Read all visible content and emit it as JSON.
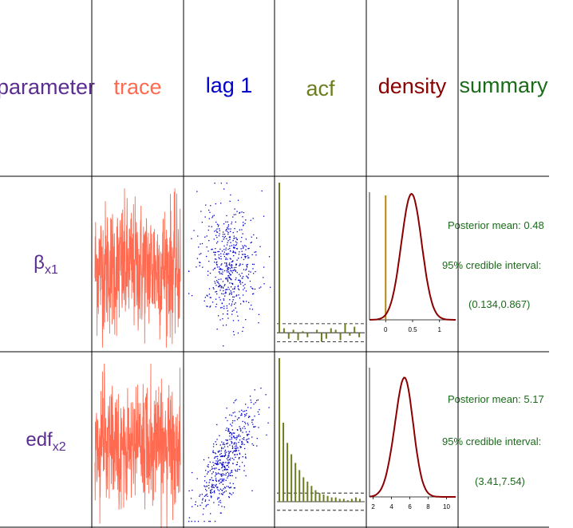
{
  "headers": {
    "parameter": {
      "label": "parameter",
      "color": "#5b2d91"
    },
    "trace": {
      "label": "trace",
      "color": "#ff6a50"
    },
    "lag1": {
      "label": "lag 1",
      "color": "#0000c8"
    },
    "acf": {
      "label": "acf",
      "color": "#6b7d1f"
    },
    "density": {
      "label": "density",
      "color": "#8b0000"
    },
    "summary": {
      "label": "summary",
      "color": "#1a6b1a"
    }
  },
  "colors": {
    "trace": "#ff6a50",
    "lag": "#0000c8",
    "acf": "#6b7d1f",
    "density": "#8b0000",
    "marker": "#b8860b",
    "summary": "#1a6b1a"
  },
  "rows": [
    {
      "param_main": "β",
      "param_sub": "x1",
      "summary": {
        "mean": "Posterior mean: 0.48",
        "ci": "95% credible interval:",
        "ci_value": "(0.134,0.867)"
      },
      "chart_data": {
        "type": "line",
        "density": {
          "x_ticks": [
            0,
            0.5,
            1
          ],
          "tick_labels": [
            "0",
            "0.5",
            "1"
          ],
          "xlim": [
            -0.3,
            1.3
          ],
          "reference_line": 0,
          "mean": 0.48,
          "sd": 0.19
        },
        "acf": {
          "values": [
            1.0,
            0.03,
            -0.04,
            0.02,
            -0.05,
            0.01,
            -0.03,
            0.0,
            0.02,
            -0.06,
            -0.04,
            0.03,
            0.02,
            -0.05,
            0.06,
            -0.02,
            0.04,
            -0.03
          ],
          "ylim": [
            -0.1,
            1.0
          ],
          "ci": 0.06
        }
      }
    },
    {
      "param_main": "edf",
      "param_sub": "x2",
      "summary": {
        "mean": "Posterior mean: 5.17",
        "ci": "95% credible interval:",
        "ci_value": "(3.41,7.54)"
      },
      "chart_data": {
        "type": "line",
        "density": {
          "x_ticks": [
            2,
            4,
            6,
            8,
            10
          ],
          "tick_labels": [
            "2",
            "4",
            "6",
            "8",
            "10"
          ],
          "xlim": [
            1.6,
            11
          ],
          "mean": 5.17,
          "sd": 1.05
        },
        "acf": {
          "values": [
            1.0,
            0.55,
            0.41,
            0.33,
            0.27,
            0.22,
            0.17,
            0.14,
            0.11,
            0.08,
            0.06,
            0.05,
            0.04,
            0.03,
            0.03,
            0.02,
            0.02,
            0.01,
            0.02,
            0.03,
            0.02
          ],
          "ylim": [
            -0.15,
            1.0
          ],
          "ci": 0.06
        }
      }
    }
  ]
}
